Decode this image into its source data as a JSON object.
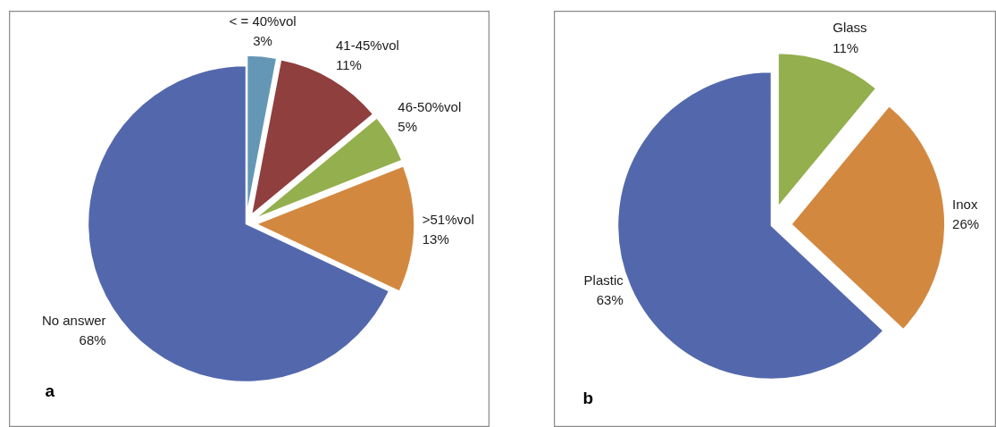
{
  "chart_data": [
    {
      "type": "pie",
      "categories": [
        "< = 40%vol",
        "41-45%vol",
        "46-50%vol",
        ">51%vol",
        "No answer"
      ],
      "values": [
        3,
        11,
        5,
        13,
        68
      ],
      "colors": [
        "#6497b5",
        "#8f3f3e",
        "#94af4e",
        "#d38840",
        "#5368ac"
      ],
      "value_labels": [
        "3%",
        "11%",
        "5%",
        "13%",
        "68%"
      ],
      "annotations": [
        "a"
      ]
    },
    {
      "type": "pie",
      "categories": [
        "Glass",
        "Inox",
        "Plastic"
      ],
      "values": [
        11,
        26,
        63
      ],
      "colors": [
        "#94af4e",
        "#d38840",
        "#5368ac"
      ],
      "value_labels": [
        "11%",
        "26%",
        "63%"
      ],
      "annotations": [
        "b"
      ]
    }
  ]
}
